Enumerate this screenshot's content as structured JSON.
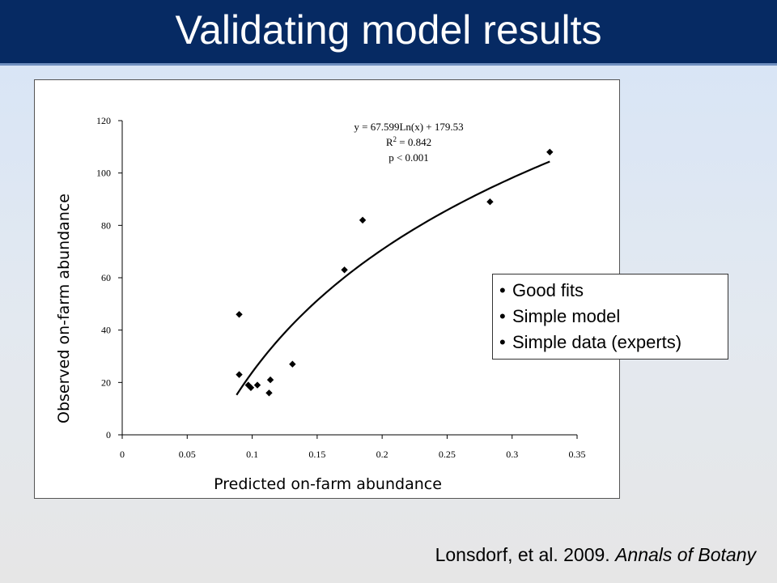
{
  "slide": {
    "title": "Validating model results",
    "citation_author": "Lonsdorf, et al. 2009. ",
    "citation_journal": "Annals of Botany"
  },
  "callout": {
    "items": [
      "Good fits",
      "Simple model",
      "Simple data (experts)"
    ]
  },
  "colors": {
    "title_bar": "#062a63",
    "points": "#000000",
    "trendline": "#000000"
  },
  "chart_data": {
    "type": "scatter",
    "xlabel": "Predicted on-farm abundance",
    "ylabel": "Observed on-farm abundance",
    "xlim": [
      0,
      0.35
    ],
    "ylim": [
      0,
      120
    ],
    "x_ticks": [
      "0",
      "0.05",
      "0.1",
      "0.15",
      "0.2",
      "0.25",
      "0.3",
      "0.35"
    ],
    "y_ticks": [
      "0",
      "20",
      "40",
      "60",
      "80",
      "100",
      "120"
    ],
    "grid": false,
    "points": [
      {
        "x": 0.09,
        "y": 46
      },
      {
        "x": 0.09,
        "y": 23
      },
      {
        "x": 0.097,
        "y": 19
      },
      {
        "x": 0.099,
        "y": 18
      },
      {
        "x": 0.104,
        "y": 19
      },
      {
        "x": 0.113,
        "y": 16
      },
      {
        "x": 0.114,
        "y": 21
      },
      {
        "x": 0.131,
        "y": 27
      },
      {
        "x": 0.171,
        "y": 63
      },
      {
        "x": 0.185,
        "y": 82
      },
      {
        "x": 0.283,
        "y": 89
      },
      {
        "x": 0.329,
        "y": 108
      }
    ],
    "trendline": {
      "type": "logarithmic",
      "a": 67.599,
      "b": 179.53,
      "x_range": [
        0.088,
        0.329
      ]
    },
    "annotations": [
      "y = 67.599Ln(x) + 179.53",
      "R",
      "2",
      " = 0.842",
      "p < 0.001"
    ]
  }
}
